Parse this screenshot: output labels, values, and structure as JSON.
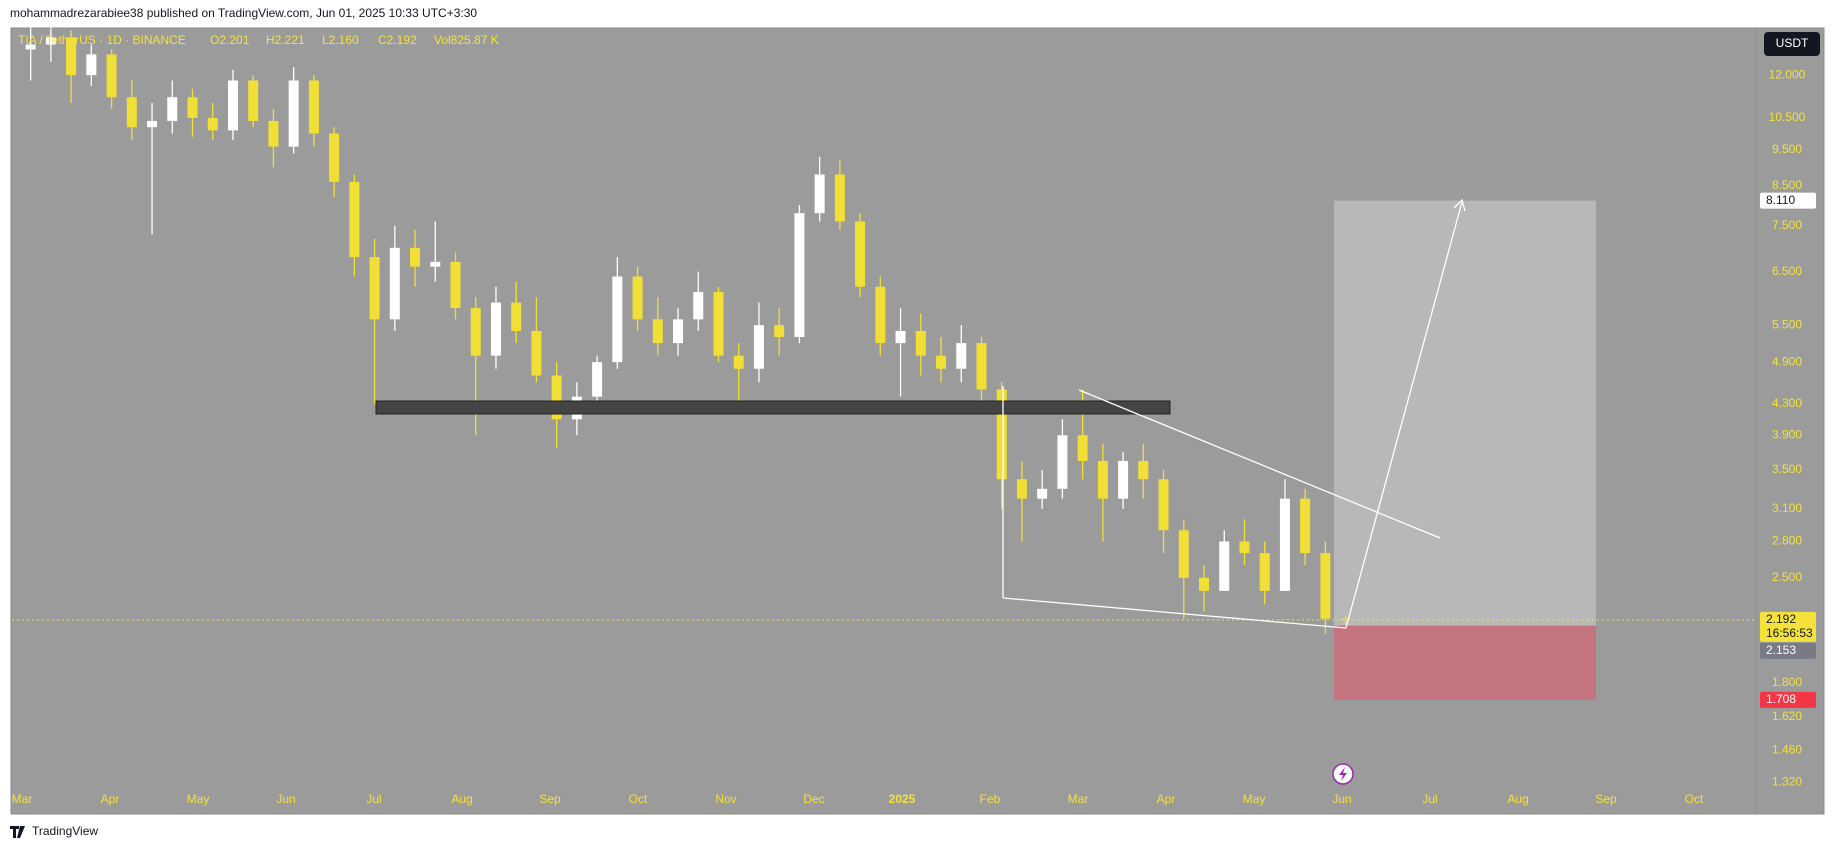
{
  "header": {
    "byline": "mohammadrezarabiee38 published on TradingView.com, Jun 01, 2025 10:33 UTC+3:30",
    "brand": "TradingView"
  },
  "chart_data": {
    "type": "candlestick",
    "log_scale": true,
    "symbol": "TIA / TetherUS · 1D · BINANCE",
    "legend": [
      "O2.201",
      "H2.221",
      "L2.160",
      "C2.192",
      "Vol825.87 K"
    ],
    "currency": "USDT",
    "x_labels": [
      "Mar",
      "Apr",
      "May",
      "Jun",
      "Jul",
      "Aug",
      "Sep",
      "Oct",
      "Nov",
      "Dec",
      "2025",
      "Feb",
      "Mar",
      "Apr",
      "May",
      "Jun",
      "Jul",
      "Aug",
      "Sep",
      "Oct"
    ],
    "up_color": "#ffffff",
    "down_color": "#f2df36",
    "open": [
      13.0,
      13.2,
      13.5,
      12.0,
      12.8,
      11.2,
      10.2,
      10.4,
      11.2,
      10.5,
      10.1,
      11.8,
      10.4,
      9.6,
      11.8,
      10.0,
      8.6,
      6.8,
      5.6,
      7.0,
      6.6,
      6.7,
      5.8,
      5.0,
      5.9,
      5.4,
      4.7,
      4.1,
      4.4,
      4.9,
      6.4,
      5.6,
      5.2,
      5.6,
      6.1,
      5.0,
      4.8,
      5.5,
      5.3,
      7.8,
      8.8,
      7.6,
      6.2,
      5.2,
      5.4,
      5.0,
      4.8,
      5.2,
      4.5,
      3.4,
      3.2,
      3.3,
      3.9,
      3.6,
      3.2,
      3.6,
      3.4,
      2.9,
      2.5,
      2.4,
      2.8,
      2.7,
      2.4,
      3.2,
      2.7,
      2.201
    ],
    "high": [
      14.2,
      14.0,
      13.8,
      13.2,
      13.0,
      11.8,
      11.0,
      11.8,
      11.5,
      11.0,
      12.2,
      12.0,
      10.8,
      12.3,
      12.0,
      10.2,
      8.8,
      7.2,
      7.5,
      7.4,
      7.6,
      6.9,
      6.0,
      6.2,
      6.3,
      6.0,
      4.9,
      4.6,
      5.0,
      6.8,
      6.6,
      6.0,
      5.8,
      6.5,
      6.2,
      5.2,
      5.9,
      5.8,
      8.0,
      9.3,
      9.2,
      7.8,
      6.4,
      5.8,
      5.7,
      5.3,
      5.5,
      5.3,
      4.6,
      3.6,
      3.5,
      4.1,
      4.5,
      3.8,
      3.7,
      3.8,
      3.5,
      3.0,
      2.6,
      2.9,
      3.0,
      2.8,
      3.4,
      3.3,
      2.8,
      2.221
    ],
    "low": [
      11.8,
      12.5,
      11.0,
      11.6,
      10.8,
      9.8,
      7.3,
      10.0,
      9.9,
      9.8,
      9.8,
      10.2,
      9.0,
      9.4,
      9.6,
      8.2,
      6.4,
      4.3,
      5.4,
      6.2,
      6.3,
      5.6,
      3.9,
      4.8,
      5.2,
      4.6,
      3.75,
      3.9,
      4.2,
      4.8,
      5.4,
      5.0,
      5.0,
      5.4,
      4.9,
      4.2,
      4.6,
      5.0,
      5.2,
      7.6,
      7.4,
      6.0,
      5.0,
      4.4,
      4.7,
      4.6,
      4.6,
      4.2,
      3.1,
      2.8,
      3.1,
      3.2,
      3.4,
      2.8,
      3.1,
      3.2,
      2.7,
      2.2,
      2.25,
      2.4,
      2.6,
      2.3,
      2.4,
      2.6,
      2.1,
      2.16
    ],
    "close": [
      13.2,
      13.5,
      12.0,
      12.8,
      11.2,
      10.2,
      10.4,
      11.2,
      10.5,
      10.1,
      11.8,
      10.4,
      9.6,
      11.8,
      10.0,
      8.6,
      6.8,
      5.6,
      7.0,
      6.6,
      6.7,
      5.8,
      5.0,
      5.9,
      5.4,
      4.7,
      4.1,
      4.4,
      4.9,
      6.4,
      5.6,
      5.2,
      5.6,
      6.1,
      5.0,
      4.8,
      5.5,
      5.3,
      7.8,
      8.8,
      7.6,
      6.2,
      5.2,
      5.4,
      5.0,
      4.8,
      5.2,
      4.5,
      3.4,
      3.2,
      3.3,
      3.9,
      3.6,
      3.2,
      3.6,
      3.4,
      2.9,
      2.5,
      2.4,
      2.8,
      2.7,
      2.4,
      3.2,
      2.7,
      2.2,
      2.192
    ],
    "ylim": [
      1.2,
      13.9
    ],
    "yticks": [
      {
        "value": 12,
        "label": "12.000"
      },
      {
        "value": 10.5,
        "label": "10.500"
      },
      {
        "value": 9.5,
        "label": "9.500"
      },
      {
        "value": 8.5,
        "label": "8.500"
      },
      {
        "value": 7.5,
        "label": "7.500"
      },
      {
        "value": 6.5,
        "label": "6.500"
      },
      {
        "value": 5.5,
        "label": "5.500"
      },
      {
        "value": 4.9,
        "label": "4.900"
      },
      {
        "value": 4.3,
        "label": "4.300"
      },
      {
        "value": 3.9,
        "label": "3.900"
      },
      {
        "value": 3.5,
        "label": "3.500"
      },
      {
        "value": 3.1,
        "label": "3.100"
      },
      {
        "value": 2.8,
        "label": "2.800"
      },
      {
        "value": 2.5,
        "label": "2.500"
      },
      {
        "value": 1.8,
        "label": "1.800"
      },
      {
        "value": 1.62,
        "label": "1.620"
      },
      {
        "value": 1.46,
        "label": "1.460"
      },
      {
        "value": 1.32,
        "label": "1.320"
      }
    ],
    "last_price": {
      "value": 2.192,
      "label": "2.192"
    },
    "countdown": "16:56:53",
    "target": {
      "value": 8.11,
      "label": "8.110"
    },
    "entry": {
      "value": 2.153,
      "label": "2.153"
    },
    "stop": {
      "value": 1.708,
      "label": "1.708"
    }
  }
}
